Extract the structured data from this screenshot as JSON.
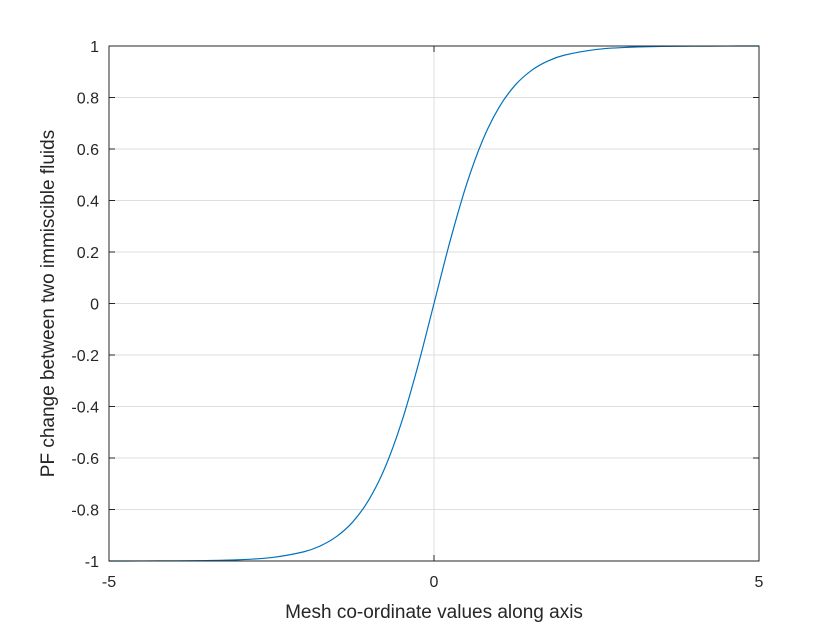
{
  "chart_data": {
    "type": "line",
    "title": "",
    "xlabel": "Mesh co-ordinate values along axis",
    "ylabel": "PF change between two immiscible fluids",
    "xlim": [
      -5,
      5
    ],
    "ylim": [
      -1,
      1
    ],
    "xticks": [
      -5,
      0,
      5
    ],
    "xtick_labels": [
      "-5",
      "0",
      "5"
    ],
    "yticks": [
      -1,
      -0.8,
      -0.6,
      -0.4,
      -0.2,
      0,
      0.2,
      0.4,
      0.6,
      0.8,
      1
    ],
    "ytick_labels": [
      "-1",
      "-0.8",
      "-0.6",
      "-0.4",
      "-0.2",
      "0",
      "0.2",
      "0.4",
      "0.6",
      "0.8",
      "1"
    ],
    "grid": true,
    "legend": "none",
    "series": [
      {
        "color": "#0072BD",
        "x": [
          -5,
          -4.5,
          -4,
          -3.5,
          -3,
          -2.5,
          -2,
          -1.75,
          -1.5,
          -1.25,
          -1,
          -0.75,
          -0.5,
          -0.25,
          0,
          0.25,
          0.5,
          0.75,
          1,
          1.25,
          1.5,
          1.75,
          2,
          2.5,
          3,
          3.5,
          4,
          4.5,
          5
        ],
        "y": [
          -0.9999,
          -0.9998,
          -0.9993,
          -0.9982,
          -0.9951,
          -0.9866,
          -0.964,
          -0.9414,
          -0.9051,
          -0.8483,
          -0.7616,
          -0.6351,
          -0.4621,
          -0.2449,
          0,
          0.2449,
          0.4621,
          0.6351,
          0.7616,
          0.8483,
          0.9051,
          0.9414,
          0.964,
          0.9866,
          0.9951,
          0.9982,
          0.9993,
          0.9998,
          0.9999
        ]
      }
    ]
  }
}
